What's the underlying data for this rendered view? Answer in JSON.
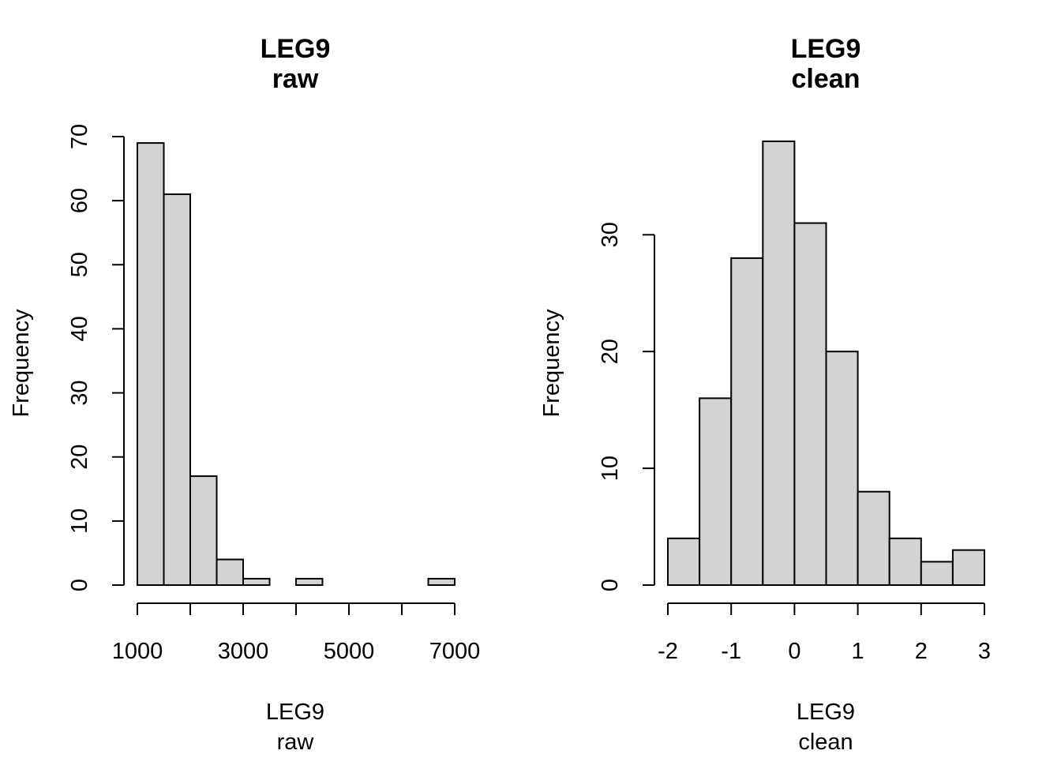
{
  "chart_data": [
    {
      "type": "bar",
      "subtype": "histogram",
      "title": "LEG9",
      "subtitle": "raw",
      "xlabel": "LEG9",
      "xlabel2": "raw",
      "ylabel": "Frequency",
      "bin_edges": [
        1000,
        1500,
        2000,
        2500,
        3000,
        3500,
        4000,
        4500,
        5000,
        5500,
        6000,
        6500,
        7000
      ],
      "values": [
        69,
        61,
        17,
        4,
        1,
        0,
        1,
        0,
        0,
        0,
        0,
        1
      ],
      "xlim": [
        1000,
        7000
      ],
      "ylim": [
        0,
        70
      ],
      "x_ticks": [
        1000,
        2000,
        3000,
        4000,
        5000,
        6000,
        7000
      ],
      "x_tick_labels": [
        "1000",
        "",
        "3000",
        "",
        "5000",
        "",
        "7000"
      ],
      "y_ticks": [
        0,
        10,
        20,
        30,
        40,
        50,
        60,
        70
      ],
      "y_tick_labels": [
        "0",
        "10",
        "20",
        "30",
        "40",
        "50",
        "60",
        "70"
      ],
      "grid": false
    },
    {
      "type": "bar",
      "subtype": "histogram",
      "title": "LEG9",
      "subtitle": "clean",
      "xlabel": "LEG9",
      "xlabel2": "clean",
      "ylabel": "Frequency",
      "bin_edges": [
        -2,
        -1.5,
        -1,
        -0.5,
        0,
        0.5,
        1,
        1.5,
        2,
        2.5,
        3
      ],
      "values": [
        4,
        16,
        28,
        38,
        31,
        20,
        8,
        4,
        2,
        3
      ],
      "xlim": [
        -2,
        3
      ],
      "ylim": [
        0,
        38
      ],
      "x_ticks": [
        -2,
        -1,
        0,
        1,
        2,
        3
      ],
      "x_tick_labels": [
        "-2",
        "-1",
        "0",
        "1",
        "2",
        "3"
      ],
      "y_ticks": [
        0,
        10,
        20,
        30
      ],
      "y_tick_labels": [
        "0",
        "10",
        "20",
        "30"
      ],
      "grid": false
    }
  ]
}
